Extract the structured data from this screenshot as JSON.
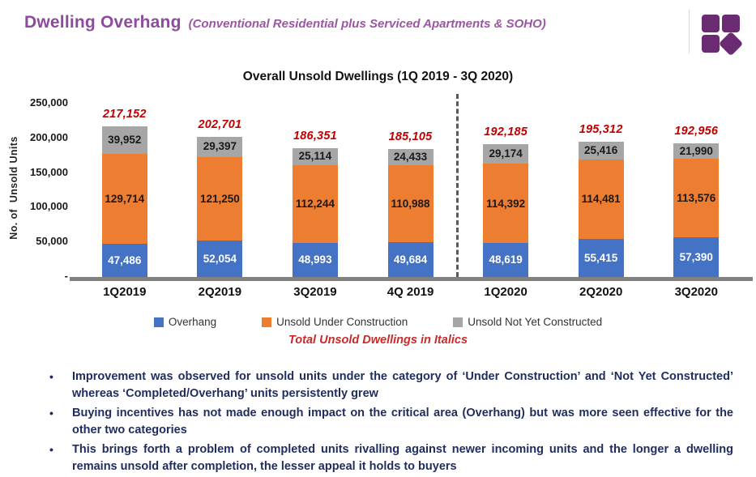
{
  "header": {
    "title": "Dwelling Overhang",
    "subtitle": "(Conventional Residential plus Serviced Apartments & SOHO)"
  },
  "colors": {
    "header_purple": "#8E4A9E",
    "logo_purple": "#6B2B72",
    "total_red": "#C00000",
    "caption_red": "#CC2929",
    "bullet_navy": "#1F2C5E",
    "axis_gray": "#808080"
  },
  "chart_data": {
    "type": "bar",
    "stacked": true,
    "title": "Overall Unsold Dwellings (1Q 2019 - 3Q 2020)",
    "ylabel": "No. of  Unsold Units",
    "xlabel": "",
    "categories": [
      "1Q2019",
      "2Q2019",
      "3Q2019",
      "4Q 2019",
      "1Q2020",
      "2Q2020",
      "3Q2020"
    ],
    "series": [
      {
        "name": "Overhang",
        "color": "#4472C4",
        "label_color": "#FFFFFF",
        "values": [
          47486,
          52054,
          48993,
          49684,
          48619,
          55415,
          57390
        ]
      },
      {
        "name": "Unsold Under Construction",
        "color": "#ED7D31",
        "label_color": "#1A1A1A",
        "values": [
          129714,
          121250,
          112244,
          110988,
          114392,
          114481,
          113576
        ]
      },
      {
        "name": "Unsold Not Yet Constructed",
        "color": "#A6A6A6",
        "label_color": "#1A1A1A",
        "values": [
          39952,
          29397,
          25114,
          24433,
          29174,
          25416,
          21990
        ]
      }
    ],
    "totals": [
      217152,
      202701,
      186351,
      185105,
      192185,
      195312,
      192956
    ],
    "totals_display": [
      "217,152",
      "202,701",
      "186,351",
      "185,105",
      "192,185",
      "195,312",
      "192,956"
    ],
    "ylim": [
      0,
      250000
    ],
    "ytick_values": [
      250000,
      200000,
      150000,
      100000,
      50000,
      0
    ],
    "ytick_labels": [
      "250,000",
      "200,000",
      "150,000",
      "100,000",
      "50,000",
      "-"
    ],
    "grid": false,
    "legend_position": "bottom",
    "divider_between": [
      "4Q 2019",
      "1Q2020"
    ],
    "note": "Total Unsold Dwellings in Italics"
  },
  "bullets": [
    "Improvement was observed for unsold units under the category of ‘Under Construction’ and ‘Not Yet Constructed’ whereas ‘Completed/Overhang’ units persistently grew",
    "Buying incentives has not made enough impact on the critical area (Overhang) but was more seen effective for the other two categories",
    "This brings forth a problem of completed units rivalling against newer incoming units and the longer a dwelling remains unsold after completion, the lesser appeal it holds to buyers"
  ]
}
